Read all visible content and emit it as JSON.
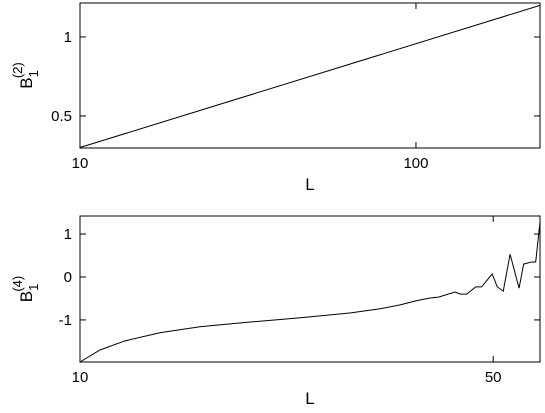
{
  "chart_data": [
    {
      "type": "line",
      "x_label": "L",
      "y_label": {
        "base": "B",
        "sub": "1",
        "sup": "(2)"
      },
      "x_scale": "log",
      "xlim": [
        10,
        234
      ],
      "ylim": [
        0.297,
        1.215
      ],
      "xticks": [
        10,
        100
      ],
      "yticks": [
        0.5,
        1
      ],
      "color": "#000000",
      "x": [
        10,
        234
      ],
      "values": [
        0.3,
        1.2
      ]
    },
    {
      "type": "line",
      "x_label": "L",
      "y_label": {
        "base": "B",
        "sub": "1",
        "sup": "(4)"
      },
      "x_scale": "log",
      "xlim": [
        10,
        60
      ],
      "ylim": [
        -1.98,
        1.42
      ],
      "xticks": [
        10,
        50
      ],
      "yticks": [
        -1,
        0,
        1
      ],
      "color": "#000000",
      "x": [
        10,
        10.81,
        11.9,
        13.65,
        15.95,
        19.4,
        23.6,
        28.6,
        32.2,
        34.8,
        36.9,
        39.1,
        40.4,
        43.1,
        44.0,
        45.1,
        46.7,
        47.8,
        49.8,
        50.8,
        52.0,
        53.4,
        55.3,
        56.3,
        58.1,
        59.0,
        60
      ],
      "values": [
        -1.98,
        -1.7,
        -1.49,
        -1.3,
        -1.16,
        -1.05,
        -0.95,
        -0.84,
        -0.74,
        -0.65,
        -0.56,
        -0.49,
        -0.47,
        -0.35,
        -0.4,
        -0.4,
        -0.23,
        -0.23,
        0.07,
        -0.23,
        -0.33,
        0.53,
        -0.26,
        0.3,
        0.35,
        0.35,
        1.28
      ]
    }
  ]
}
